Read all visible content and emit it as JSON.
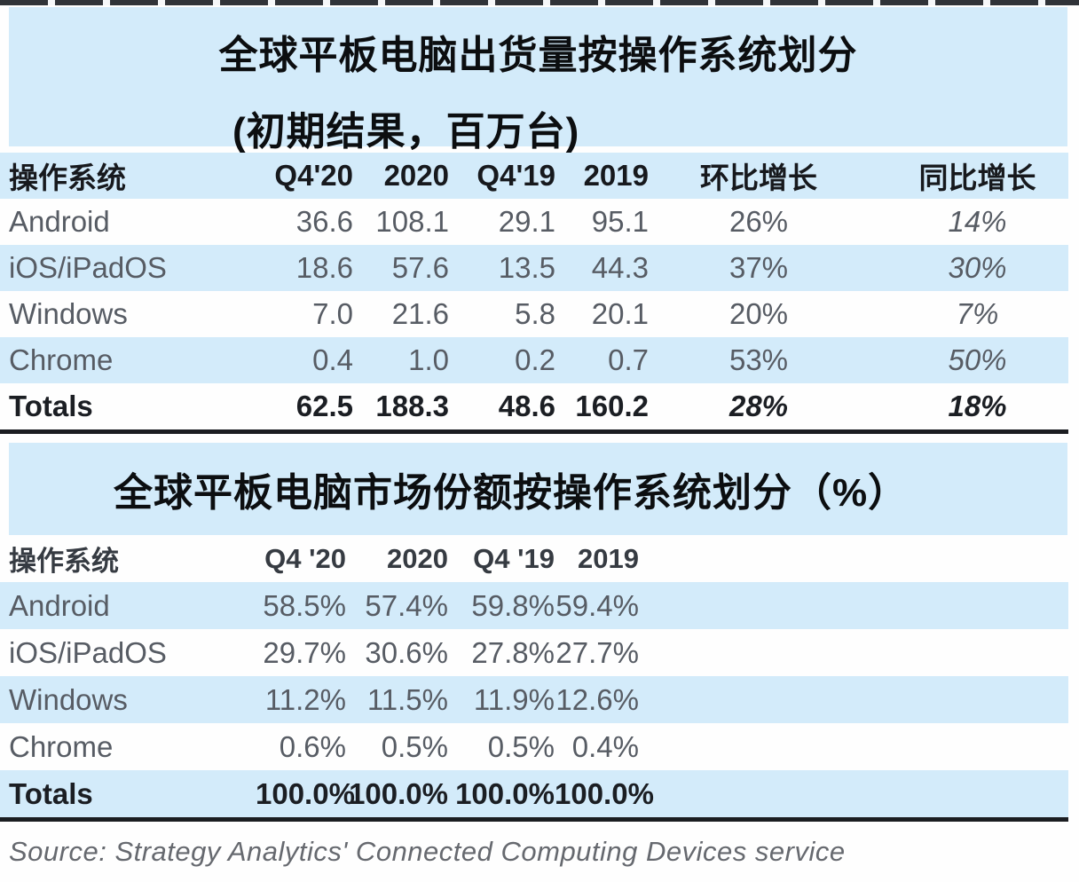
{
  "colors": {
    "panel_blue": "#d3ebfa",
    "text_dark": "#1b1e23",
    "text_gray": "#575c64",
    "line_black": "#1b1d21"
  },
  "shipments_table": {
    "title": "全球平板电脑出货量按操作系统划分",
    "subtitle": "(初期结果，百万台)",
    "headers": {
      "os": "操作系统",
      "q4_20": "Q4'20",
      "fy2020": "2020",
      "q4_19": "Q4'19",
      "fy2019": "2019",
      "qoq": "环比增长",
      "yoy": "同比增长"
    },
    "rows": [
      {
        "os": "Android",
        "q4_20": "36.6",
        "fy2020": "108.1",
        "q4_19": "29.1",
        "fy2019": "95.1",
        "qoq": "26%",
        "yoy": "14%"
      },
      {
        "os": "iOS/iPadOS",
        "q4_20": "18.6",
        "fy2020": "57.6",
        "q4_19": "13.5",
        "fy2019": "44.3",
        "qoq": "37%",
        "yoy": "30%"
      },
      {
        "os": "Windows",
        "q4_20": "7.0",
        "fy2020": "21.6",
        "q4_19": "5.8",
        "fy2019": "20.1",
        "qoq": "20%",
        "yoy": "7%"
      },
      {
        "os": "Chrome",
        "q4_20": "0.4",
        "fy2020": "1.0",
        "q4_19": "0.2",
        "fy2019": "0.7",
        "qoq": "53%",
        "yoy": "50%"
      }
    ],
    "totals": {
      "os": "Totals",
      "q4_20": "62.5",
      "fy2020": "188.3",
      "q4_19": "48.6",
      "fy2019": "160.2",
      "qoq": "28%",
      "yoy": "18%"
    }
  },
  "share_table": {
    "title": "全球平板电脑市场份额按操作系统划分（%）",
    "headers": {
      "os": "操作系统",
      "q4_20": "Q4 '20",
      "fy2020": "2020",
      "q4_19": "Q4 '19",
      "fy2019": "2019"
    },
    "rows": [
      {
        "os": "Android",
        "q4_20": "58.5%",
        "fy2020": "57.4%",
        "q4_19": "59.8%",
        "fy2019": "59.4%"
      },
      {
        "os": "iOS/iPadOS",
        "q4_20": "29.7%",
        "fy2020": "30.6%",
        "q4_19": "27.8%",
        "fy2019": "27.7%"
      },
      {
        "os": "Windows",
        "q4_20": "11.2%",
        "fy2020": "11.5%",
        "q4_19": "11.9%",
        "fy2019": "12.6%"
      },
      {
        "os": "Chrome",
        "q4_20": "0.6%",
        "fy2020": "0.5%",
        "q4_19": "0.5%",
        "fy2019": "0.4%"
      }
    ],
    "totals": {
      "os": "Totals",
      "q4_20": "100.0%",
      "fy2020": "100.0%",
      "q4_19": "100.0%",
      "fy2019": "100.0%"
    }
  },
  "footer": {
    "source": "Source: Strategy Analytics' Connected Computing Devices service"
  },
  "chart_data": [
    {
      "type": "table",
      "title": "全球平板电脑出货量按操作系统划分 (初期结果，百万台)",
      "columns": [
        "操作系统",
        "Q4'20",
        "2020",
        "Q4'19",
        "2019",
        "环比增长",
        "同比增长"
      ],
      "rows": [
        [
          "Android",
          36.6,
          108.1,
          29.1,
          95.1,
          "26%",
          "14%"
        ],
        [
          "iOS/iPadOS",
          18.6,
          57.6,
          13.5,
          44.3,
          "37%",
          "30%"
        ],
        [
          "Windows",
          7.0,
          21.6,
          5.8,
          20.1,
          "20%",
          "7%"
        ],
        [
          "Chrome",
          0.4,
          1.0,
          0.2,
          0.7,
          "53%",
          "50%"
        ],
        [
          "Totals",
          62.5,
          188.3,
          48.6,
          160.2,
          "28%",
          "18%"
        ]
      ]
    },
    {
      "type": "table",
      "title": "全球平板电脑市场份额按操作系统划分（%）",
      "columns": [
        "操作系统",
        "Q4 '20",
        "2020",
        "Q4 '19",
        "2019"
      ],
      "rows": [
        [
          "Android",
          "58.5%",
          "57.4%",
          "59.8%",
          "59.4%"
        ],
        [
          "iOS/iPadOS",
          "29.7%",
          "30.6%",
          "27.8%",
          "27.7%"
        ],
        [
          "Windows",
          "11.2%",
          "11.5%",
          "11.9%",
          "12.6%"
        ],
        [
          "Chrome",
          "0.6%",
          "0.5%",
          "0.5%",
          "0.4%"
        ],
        [
          "Totals",
          "100.0%",
          "100.0%",
          "100.0%",
          "100.0%"
        ]
      ]
    }
  ]
}
